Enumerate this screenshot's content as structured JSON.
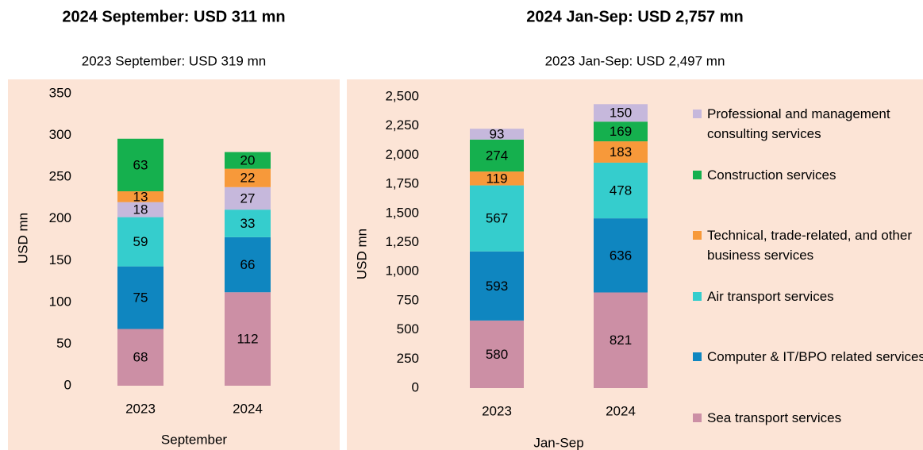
{
  "chart_data": [
    {
      "type": "bar",
      "stacked": true,
      "title": "2024 September: USD 311 mn",
      "subtitle": "2023 September: USD 319 mn",
      "x_label": "September",
      "y_label": "USD mn",
      "categories": [
        "2023",
        "2024"
      ],
      "ylim": [
        0,
        350
      ],
      "yticks": [
        0,
        50,
        100,
        150,
        200,
        250,
        300,
        350
      ],
      "series": [
        {
          "color": "#cc8fa5",
          "values": [
            68,
            112
          ]
        },
        {
          "color": "#0f86c0",
          "values": [
            75,
            66
          ]
        },
        {
          "color": "#35cdcd",
          "values": [
            59,
            33
          ]
        },
        {
          "color": "#c6b8dc",
          "values": [
            18,
            27
          ]
        },
        {
          "color": "#f7993a",
          "values": [
            13,
            22
          ]
        },
        {
          "color": "#15b04e",
          "values": [
            63,
            20
          ]
        }
      ]
    },
    {
      "type": "bar",
      "stacked": true,
      "title": "2024 Jan-Sep: USD 2,757 mn",
      "subtitle": "2023 Jan-Sep: USD 2,497 mn",
      "x_label": "Jan-Sep",
      "y_label": "USD mn",
      "categories": [
        "2023",
        "2024"
      ],
      "ylim": [
        0,
        2500
      ],
      "yticks": [
        0,
        250,
        500,
        750,
        {
          "value": 1000,
          "label": "1,000"
        },
        {
          "value": 1250,
          "label": "1,250"
        },
        {
          "value": 1500,
          "label": "1,500"
        },
        {
          "value": 1750,
          "label": "1,750"
        },
        {
          "value": 2000,
          "label": "2,000"
        },
        {
          "value": 2250,
          "label": "2,250"
        },
        {
          "value": 2500,
          "label": "2,500"
        }
      ],
      "legend": "right",
      "series": [
        {
          "name": "Sea transport services",
          "color": "#cc8fa5",
          "values": [
            580,
            821
          ]
        },
        {
          "name": "Computer & IT/BPO related services",
          "color": "#0f86c0",
          "values": [
            593,
            636
          ]
        },
        {
          "name": "Air transport services",
          "color": "#35cdcd",
          "values": [
            567,
            478
          ]
        },
        {
          "name": "Technical, trade-related, and other business services",
          "color": "#f7993a",
          "values": [
            119,
            183
          ]
        },
        {
          "name": "Construction services",
          "color": "#15b04e",
          "values": [
            274,
            169
          ]
        },
        {
          "name": "Professional and management consulting services",
          "color": "#c6b8dc",
          "values": [
            93,
            150
          ]
        }
      ]
    }
  ]
}
